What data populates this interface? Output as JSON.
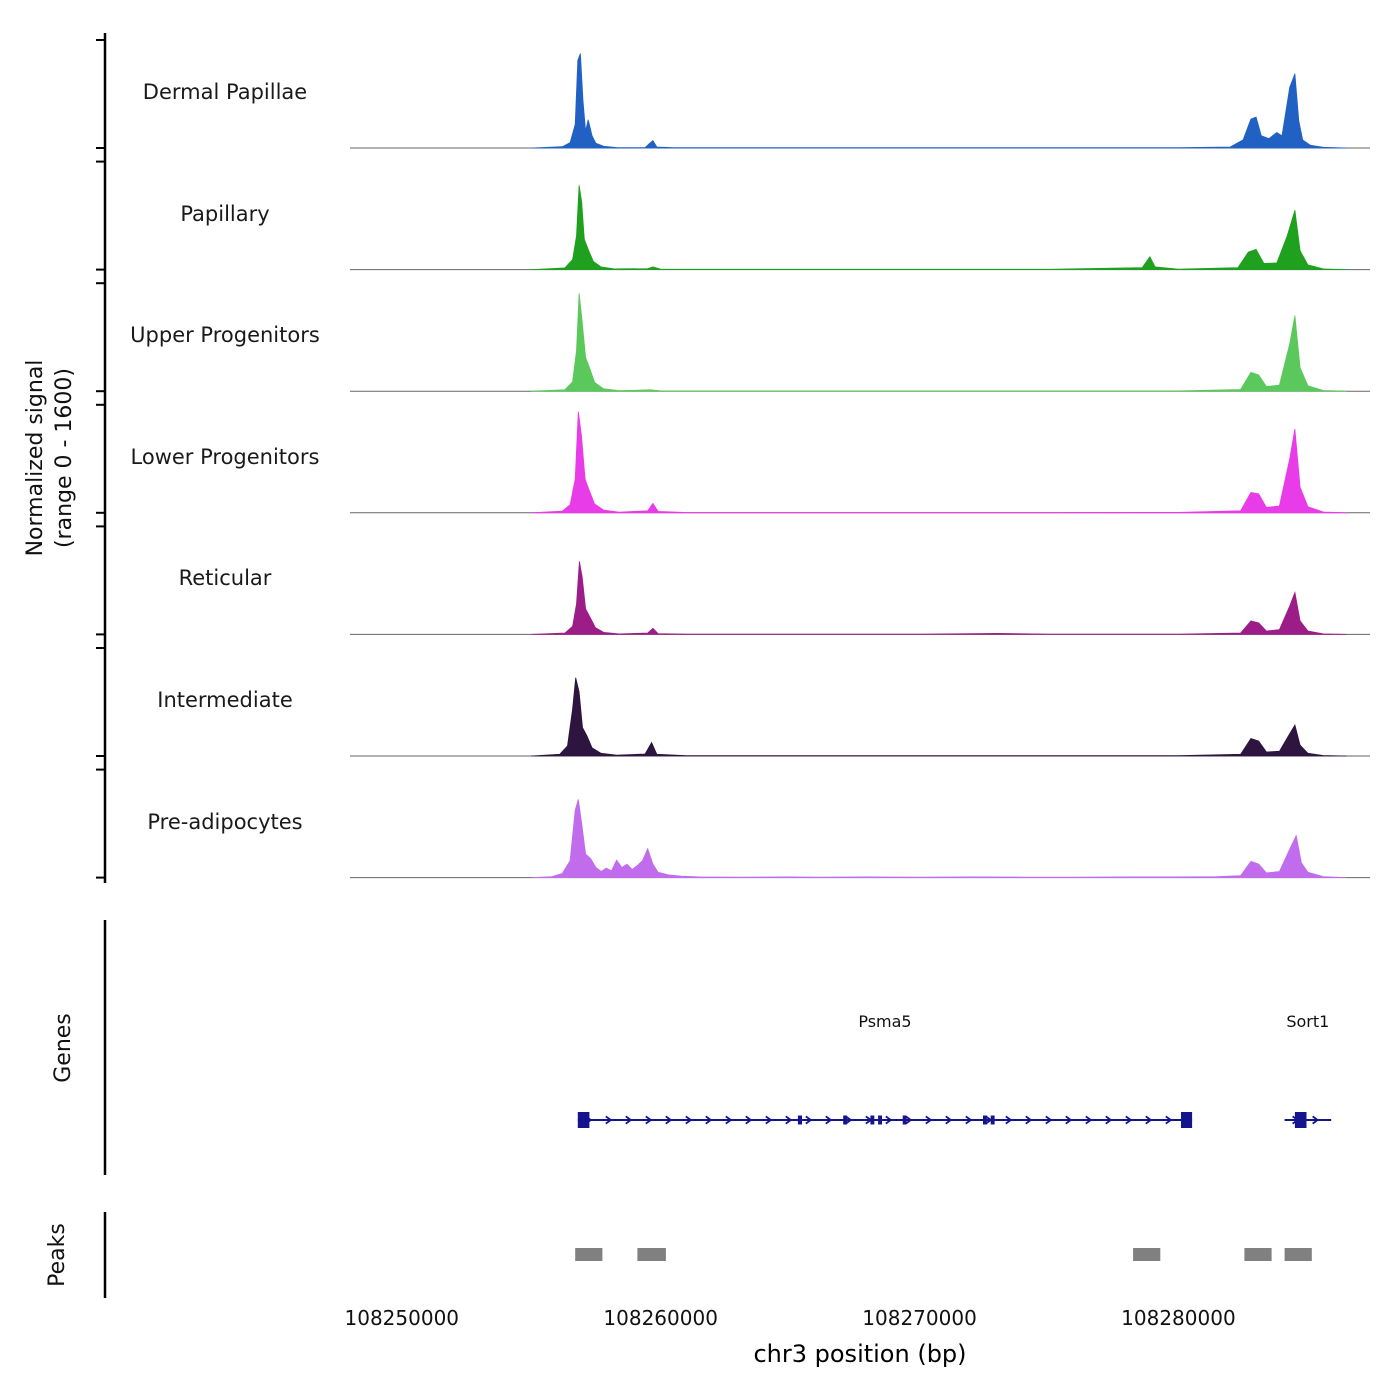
{
  "labels": {
    "y_axis_line1": "Normalized signal",
    "y_axis_line2": "(range 0 - 1600)",
    "genes": "Genes",
    "peaks": "Peaks",
    "x_axis": "chr3 position (bp)"
  },
  "chart_data": {
    "type": "area",
    "title": "",
    "xlabel": "chr3 position (bp)",
    "ylabel": "Normalized signal (range 0 - 1600)",
    "chromosome": "chr3",
    "x_domain_bp": [
      108248000,
      108287400
    ],
    "y_range_per_track": [
      0,
      1600
    ],
    "xticks": [
      {
        "bp": 108250000,
        "label": "108250000"
      },
      {
        "bp": 108260000,
        "label": "108260000"
      },
      {
        "bp": 108270000,
        "label": "108270000"
      },
      {
        "bp": 108280000,
        "label": "108280000"
      }
    ],
    "gene_color": "#14148c",
    "peak_color": "#808080",
    "series": [
      {
        "name": "Dermal Papillae",
        "color": "#2161c4",
        "points": [
          [
            108255000,
            0
          ],
          [
            108256200,
            20
          ],
          [
            108256500,
            80
          ],
          [
            108256700,
            350
          ],
          [
            108256800,
            1300
          ],
          [
            108256900,
            1400
          ],
          [
            108257000,
            700
          ],
          [
            108257100,
            250
          ],
          [
            108257200,
            420
          ],
          [
            108257350,
            180
          ],
          [
            108257500,
            70
          ],
          [
            108257800,
            25
          ],
          [
            108258300,
            8
          ],
          [
            108259400,
            5
          ],
          [
            108259550,
            60
          ],
          [
            108259700,
            110
          ],
          [
            108259850,
            15
          ],
          [
            108260500,
            4
          ],
          [
            108265000,
            4
          ],
          [
            108270000,
            4
          ],
          [
            108275000,
            4
          ],
          [
            108280000,
            6
          ],
          [
            108282000,
            15
          ],
          [
            108282500,
            120
          ],
          [
            108282800,
            430
          ],
          [
            108283000,
            460
          ],
          [
            108283200,
            180
          ],
          [
            108283500,
            140
          ],
          [
            108283800,
            230
          ],
          [
            108284000,
            180
          ],
          [
            108284300,
            900
          ],
          [
            108284500,
            1100
          ],
          [
            108284650,
            400
          ],
          [
            108284800,
            120
          ],
          [
            108285100,
            40
          ],
          [
            108285600,
            10
          ],
          [
            108286500,
            0
          ]
        ]
      },
      {
        "name": "Papillary",
        "color": "#1fa01f",
        "points": [
          [
            108255000,
            0
          ],
          [
            108256300,
            25
          ],
          [
            108256600,
            150
          ],
          [
            108256750,
            500
          ],
          [
            108256850,
            1250
          ],
          [
            108256950,
            1000
          ],
          [
            108257050,
            450
          ],
          [
            108257200,
            300
          ],
          [
            108257400,
            120
          ],
          [
            108257700,
            40
          ],
          [
            108258200,
            10
          ],
          [
            108259500,
            15
          ],
          [
            108259700,
            40
          ],
          [
            108260000,
            8
          ],
          [
            108265000,
            4
          ],
          [
            108270000,
            4
          ],
          [
            108275000,
            5
          ],
          [
            108278600,
            30
          ],
          [
            108278900,
            190
          ],
          [
            108279100,
            40
          ],
          [
            108280000,
            6
          ],
          [
            108282300,
            30
          ],
          [
            108282700,
            260
          ],
          [
            108283000,
            300
          ],
          [
            108283300,
            90
          ],
          [
            108283800,
            100
          ],
          [
            108284200,
            500
          ],
          [
            108284500,
            880
          ],
          [
            108284700,
            280
          ],
          [
            108285000,
            70
          ],
          [
            108285600,
            10
          ],
          [
            108286500,
            0
          ]
        ]
      },
      {
        "name": "Upper Progenitors",
        "color": "#5bc85b",
        "points": [
          [
            108255000,
            0
          ],
          [
            108256300,
            20
          ],
          [
            108256600,
            140
          ],
          [
            108256750,
            600
          ],
          [
            108256850,
            1450
          ],
          [
            108256950,
            1100
          ],
          [
            108257100,
            500
          ],
          [
            108257250,
            350
          ],
          [
            108257450,
            130
          ],
          [
            108257800,
            35
          ],
          [
            108258400,
            8
          ],
          [
            108259600,
            20
          ],
          [
            108260000,
            5
          ],
          [
            108265000,
            4
          ],
          [
            108270000,
            4
          ],
          [
            108275000,
            4
          ],
          [
            108280000,
            5
          ],
          [
            108282400,
            25
          ],
          [
            108282800,
            280
          ],
          [
            108283100,
            240
          ],
          [
            108283400,
            70
          ],
          [
            108283900,
            90
          ],
          [
            108284300,
            700
          ],
          [
            108284500,
            1120
          ],
          [
            108284700,
            350
          ],
          [
            108285000,
            80
          ],
          [
            108285600,
            10
          ],
          [
            108286500,
            0
          ]
        ]
      },
      {
        "name": "Lower Progenitors",
        "color": "#e83ce8",
        "points": [
          [
            108255000,
            0
          ],
          [
            108256200,
            25
          ],
          [
            108256500,
            120
          ],
          [
            108256700,
            500
          ],
          [
            108256820,
            1500
          ],
          [
            108256940,
            1150
          ],
          [
            108257080,
            500
          ],
          [
            108257250,
            320
          ],
          [
            108257450,
            130
          ],
          [
            108257800,
            40
          ],
          [
            108258400,
            10
          ],
          [
            108259500,
            30
          ],
          [
            108259700,
            140
          ],
          [
            108259900,
            20
          ],
          [
            108261000,
            5
          ],
          [
            108265000,
            4
          ],
          [
            108270000,
            5
          ],
          [
            108275000,
            5
          ],
          [
            108280000,
            6
          ],
          [
            108282400,
            30
          ],
          [
            108282800,
            300
          ],
          [
            108283100,
            280
          ],
          [
            108283400,
            80
          ],
          [
            108283900,
            100
          ],
          [
            108284300,
            800
          ],
          [
            108284500,
            1240
          ],
          [
            108284700,
            380
          ],
          [
            108285000,
            90
          ],
          [
            108285600,
            12
          ],
          [
            108286500,
            0
          ]
        ]
      },
      {
        "name": "Reticular",
        "color": "#9c1d87",
        "points": [
          [
            108255000,
            0
          ],
          [
            108256300,
            20
          ],
          [
            108256600,
            120
          ],
          [
            108256750,
            450
          ],
          [
            108256860,
            1080
          ],
          [
            108256970,
            850
          ],
          [
            108257100,
            380
          ],
          [
            108257280,
            250
          ],
          [
            108257480,
            100
          ],
          [
            108257800,
            30
          ],
          [
            108258400,
            8
          ],
          [
            108259500,
            20
          ],
          [
            108259700,
            90
          ],
          [
            108259900,
            12
          ],
          [
            108261000,
            4
          ],
          [
            108265000,
            3
          ],
          [
            108270000,
            4
          ],
          [
            108273000,
            15
          ],
          [
            108275000,
            4
          ],
          [
            108280000,
            5
          ],
          [
            108282400,
            20
          ],
          [
            108282800,
            200
          ],
          [
            108283100,
            170
          ],
          [
            108283400,
            50
          ],
          [
            108283900,
            70
          ],
          [
            108284300,
            420
          ],
          [
            108284500,
            620
          ],
          [
            108284700,
            200
          ],
          [
            108285000,
            50
          ],
          [
            108285600,
            8
          ],
          [
            108286500,
            0
          ]
        ]
      },
      {
        "name": "Intermediate",
        "color": "#2d1540",
        "points": [
          [
            108255000,
            0
          ],
          [
            108256100,
            25
          ],
          [
            108256400,
            150
          ],
          [
            108256600,
            700
          ],
          [
            108256720,
            1160
          ],
          [
            108256850,
            950
          ],
          [
            108256980,
            420
          ],
          [
            108257150,
            300
          ],
          [
            108257350,
            120
          ],
          [
            108257700,
            40
          ],
          [
            108258300,
            12
          ],
          [
            108259400,
            30
          ],
          [
            108259650,
            200
          ],
          [
            108259850,
            25
          ],
          [
            108261000,
            5
          ],
          [
            108265000,
            4
          ],
          [
            108270000,
            4
          ],
          [
            108275000,
            4
          ],
          [
            108280000,
            5
          ],
          [
            108282400,
            25
          ],
          [
            108282800,
            260
          ],
          [
            108283100,
            220
          ],
          [
            108283400,
            60
          ],
          [
            108283900,
            70
          ],
          [
            108284300,
            330
          ],
          [
            108284500,
            460
          ],
          [
            108284700,
            160
          ],
          [
            108285000,
            40
          ],
          [
            108285600,
            8
          ],
          [
            108286500,
            0
          ]
        ]
      },
      {
        "name": "Pre-adipocytes",
        "color": "#c16ced",
        "points": [
          [
            108255000,
            0
          ],
          [
            108255800,
            15
          ],
          [
            108256200,
            60
          ],
          [
            108256500,
            250
          ],
          [
            108256700,
            1000
          ],
          [
            108256820,
            1160
          ],
          [
            108256950,
            800
          ],
          [
            108257100,
            350
          ],
          [
            108257300,
            280
          ],
          [
            108257500,
            150
          ],
          [
            108257700,
            90
          ],
          [
            108257900,
            140
          ],
          [
            108258100,
            100
          ],
          [
            108258300,
            260
          ],
          [
            108258500,
            150
          ],
          [
            108258700,
            200
          ],
          [
            108258900,
            120
          ],
          [
            108259100,
            180
          ],
          [
            108259300,
            250
          ],
          [
            108259500,
            430
          ],
          [
            108259700,
            200
          ],
          [
            108259900,
            80
          ],
          [
            108260300,
            40
          ],
          [
            108260800,
            20
          ],
          [
            108261500,
            10
          ],
          [
            108263000,
            8
          ],
          [
            108265000,
            10
          ],
          [
            108266000,
            8
          ],
          [
            108268000,
            10
          ],
          [
            108270000,
            8
          ],
          [
            108272000,
            10
          ],
          [
            108274000,
            8
          ],
          [
            108276000,
            8
          ],
          [
            108278000,
            10
          ],
          [
            108280000,
            10
          ],
          [
            108281500,
            15
          ],
          [
            108282400,
            30
          ],
          [
            108282800,
            240
          ],
          [
            108283100,
            200
          ],
          [
            108283400,
            70
          ],
          [
            108283900,
            90
          ],
          [
            108284300,
            420
          ],
          [
            108284550,
            620
          ],
          [
            108284750,
            220
          ],
          [
            108285000,
            80
          ],
          [
            108285600,
            15
          ],
          [
            108286500,
            0
          ]
        ]
      }
    ],
    "genes": [
      {
        "name": "Psma5",
        "start": 108256800,
        "end": 108280530,
        "strand": "+",
        "exons": [
          {
            "start": 108256800,
            "end": 108257250,
            "type": "tall"
          },
          {
            "start": 108265300,
            "end": 108265460,
            "type": "thin"
          },
          {
            "start": 108267050,
            "end": 108267200,
            "type": "thin"
          },
          {
            "start": 108268100,
            "end": 108268250,
            "type": "thin"
          },
          {
            "start": 108268400,
            "end": 108268550,
            "type": "thin"
          },
          {
            "start": 108269350,
            "end": 108269500,
            "type": "thin"
          },
          {
            "start": 108272450,
            "end": 108272600,
            "type": "thin"
          },
          {
            "start": 108272750,
            "end": 108272900,
            "type": "thin"
          },
          {
            "start": 108280100,
            "end": 108280530,
            "type": "tall"
          }
        ]
      },
      {
        "name": "Sort1",
        "start": 108284100,
        "end": 108285900,
        "strand": "+",
        "exons": [
          {
            "start": 108284500,
            "end": 108284950,
            "type": "tall"
          }
        ]
      }
    ],
    "peaks": [
      {
        "start": 108256700,
        "end": 108257750
      },
      {
        "start": 108259100,
        "end": 108260200
      },
      {
        "start": 108278250,
        "end": 108279300
      },
      {
        "start": 108282550,
        "end": 108283600
      },
      {
        "start": 108284100,
        "end": 108285150
      }
    ]
  }
}
